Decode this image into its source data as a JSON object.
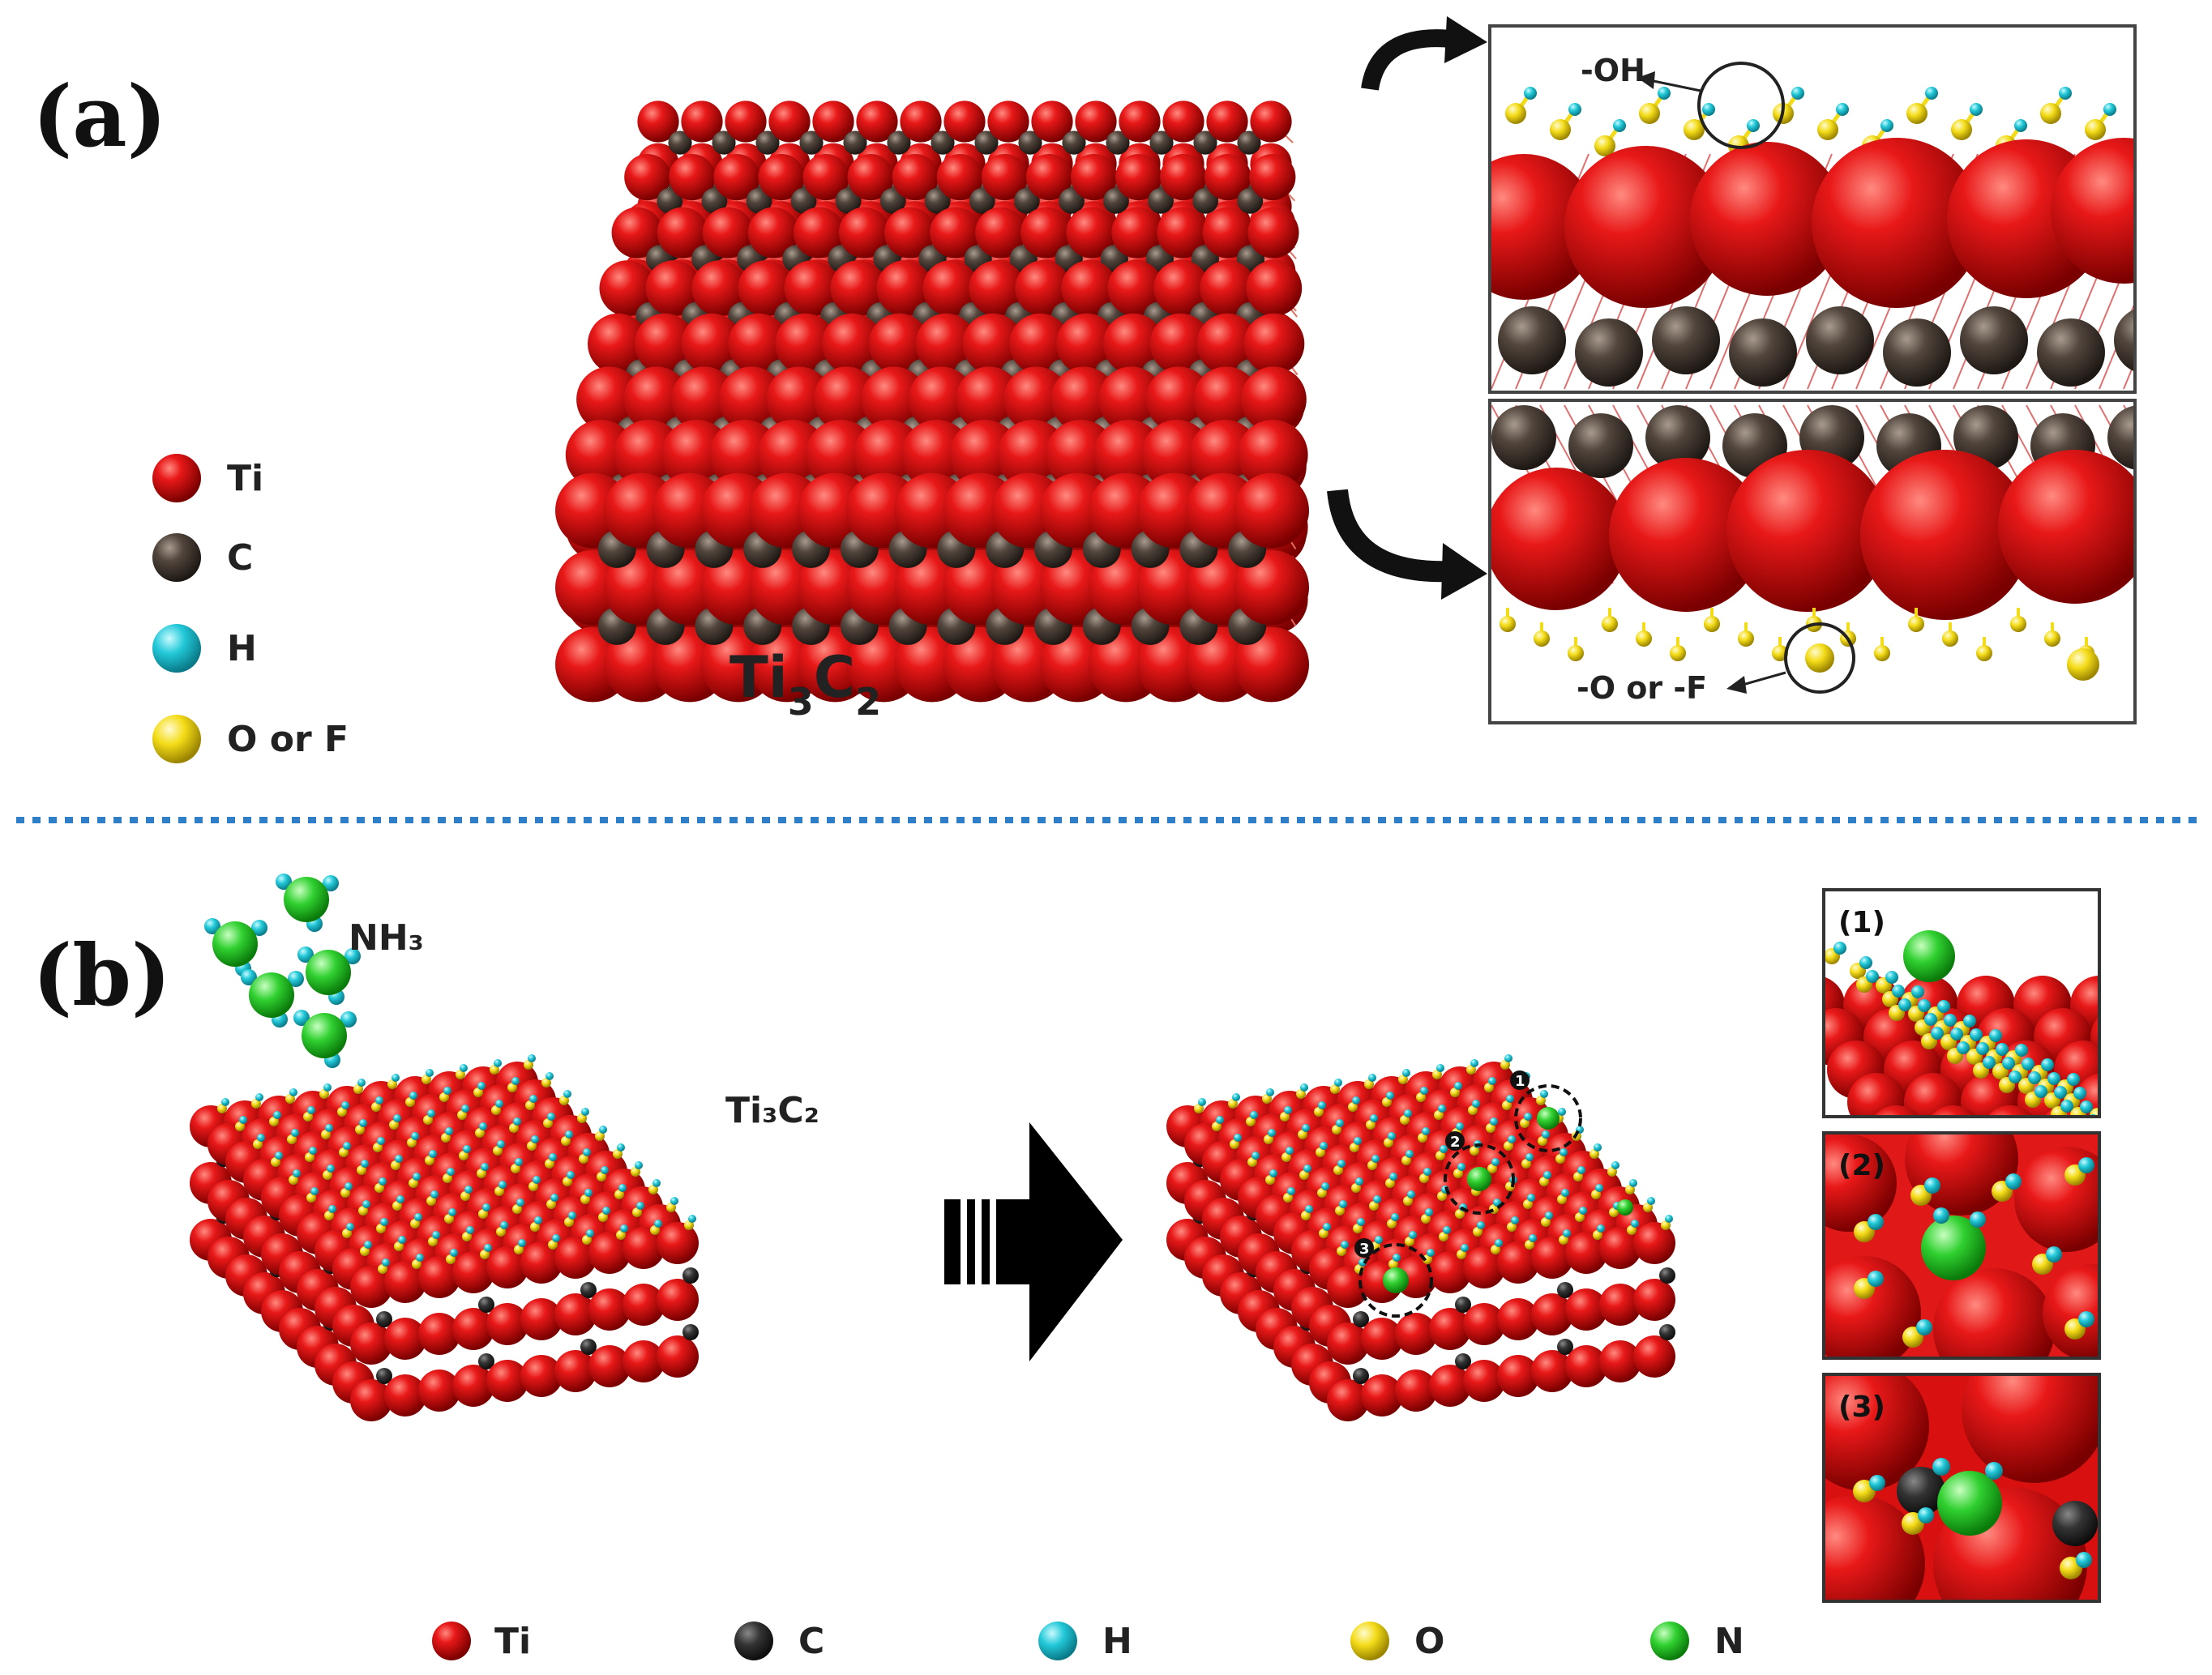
{
  "panel_a": {
    "label": "(a)",
    "formula_main": "Ti",
    "formula_sub1": "3",
    "formula_c": "C",
    "formula_sub2": "2",
    "callout_top": "-OH",
    "callout_bottom": "-O or -F",
    "legend": [
      {
        "label": "Ti",
        "color": "#dc1010"
      },
      {
        "label": "C",
        "color": "#4a3f37"
      },
      {
        "label": "H",
        "color": "#22c8d0"
      },
      {
        "label": "O or F",
        "color": "#f2dc1a"
      }
    ]
  },
  "panel_b": {
    "label": "(b)",
    "molecule_label": "NH₃",
    "slab_label": "Ti₃C₂",
    "site_numbers": [
      "1",
      "2",
      "3"
    ],
    "insets": [
      {
        "label": "(1)"
      },
      {
        "label": "(2)"
      },
      {
        "label": "(3)"
      }
    ],
    "legend": [
      {
        "label": "Ti",
        "color": "#e01010"
      },
      {
        "label": "C",
        "color": "#333333"
      },
      {
        "label": "H",
        "color": "#2ad4e8"
      },
      {
        "label": "O",
        "color": "#f4e81c"
      },
      {
        "label": "N",
        "color": "#2ecc2e"
      }
    ]
  },
  "colors": {
    "ti": "#dc1010",
    "c": "#4a3f37",
    "h": "#22c8d0",
    "o": "#f2dc1a",
    "n": "#2ecc2e",
    "divider": "#2f7fc8"
  }
}
